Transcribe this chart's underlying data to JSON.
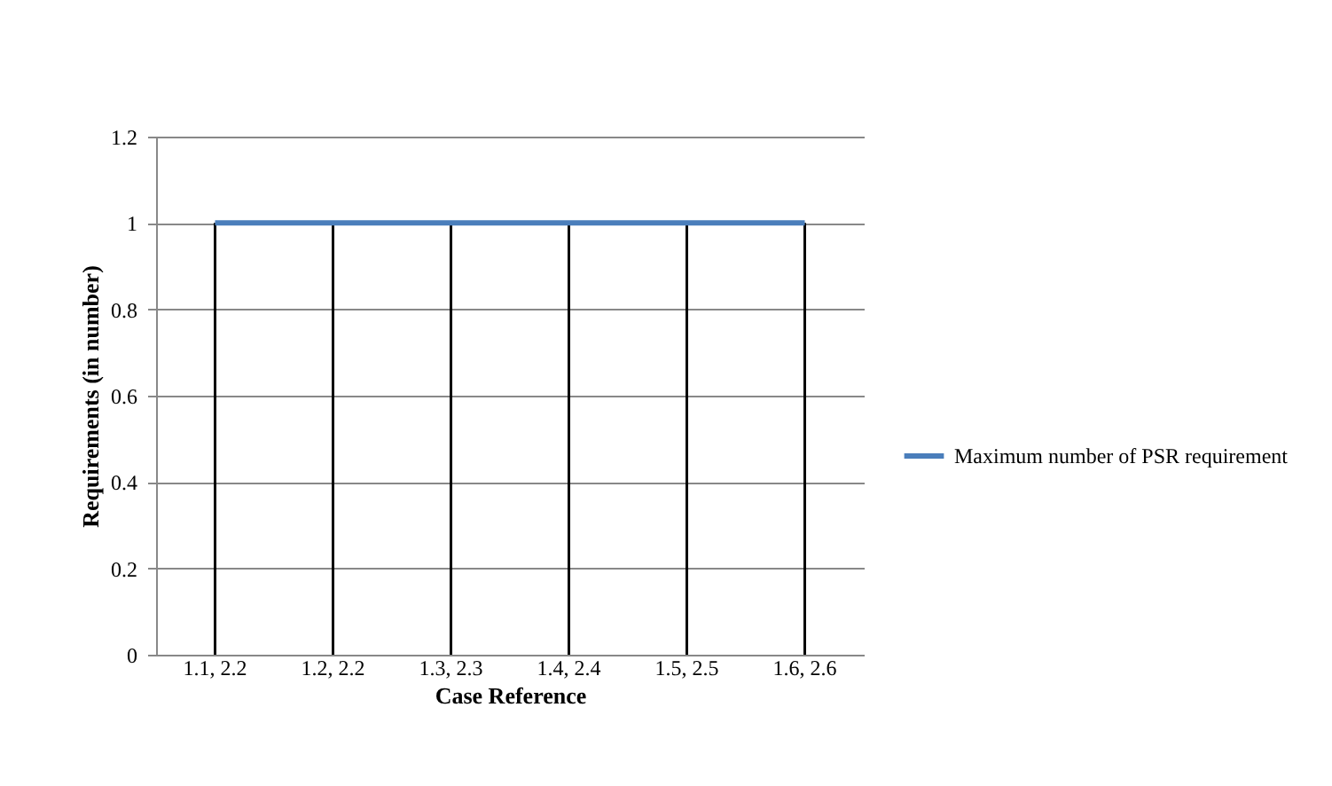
{
  "chart_data": {
    "type": "line",
    "xlabel": "Case Reference",
    "ylabel": "Requirements (in number)",
    "categories": [
      "1.1, 2.2",
      "1.2, 2.2",
      "1.3, 2.3",
      "1.4, 2.4",
      "1.5, 2.5",
      "1.6, 2.6"
    ],
    "series": [
      {
        "name": "Maximum number of PSR requirement",
        "color": "#4a7ebb",
        "values": [
          1,
          1,
          1,
          1,
          1,
          1
        ]
      },
      {
        "type": "bar",
        "color": "#000000",
        "values": [
          1,
          1,
          1,
          1,
          1,
          1
        ]
      }
    ],
    "ylim": [
      0,
      1.2
    ],
    "yticks": [
      0,
      0.2,
      0.4,
      0.6,
      0.8,
      1,
      1.2
    ],
    "grid": "y",
    "legend": "right"
  }
}
